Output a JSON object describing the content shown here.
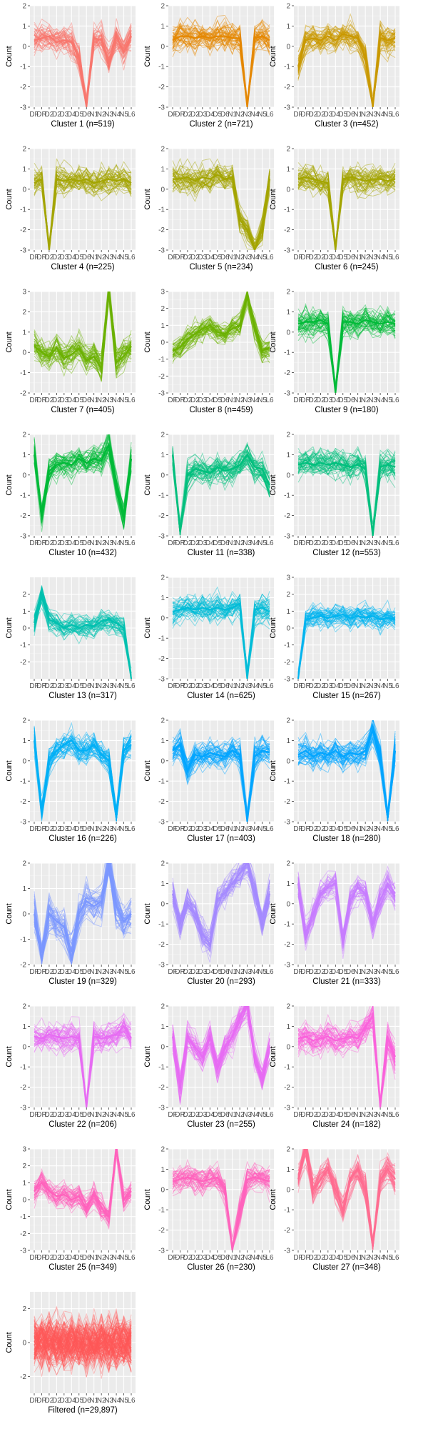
{
  "x_tick_labels": [
    "DF",
    "DR",
    "D2",
    "D2",
    "D3",
    "D4",
    "D5",
    "D6",
    "N1",
    "N2",
    "N3",
    "N4",
    "N5",
    "L6"
  ],
  "y_axis_label": "Count",
  "chart_data": [
    {
      "type": "line",
      "title": "Cluster 1 (n=519)",
      "ylim": [
        -3,
        2
      ],
      "yticks": [
        2,
        1,
        0,
        -1,
        -2,
        -3
      ],
      "color": "#F8766D",
      "profile": [
        0.3,
        0.4,
        0.5,
        0.2,
        0.3,
        0.2,
        -0.6,
        -3.0,
        0.4,
        0.3,
        -0.8,
        0.5,
        -0.3,
        0.5
      ],
      "grid": true
    },
    {
      "type": "line",
      "title": "Cluster 2 (n=721)",
      "ylim": [
        -3,
        2
      ],
      "yticks": [
        2,
        1,
        0,
        -1,
        -2,
        -3
      ],
      "color": "#E58700",
      "profile": [
        0.3,
        0.5,
        0.5,
        0.4,
        0.5,
        0.4,
        0.5,
        0.5,
        0.4,
        0.4,
        -3.0,
        0.4,
        0.5,
        0.3
      ],
      "grid": true
    },
    {
      "type": "line",
      "title": "Cluster 3 (n=452)",
      "ylim": [
        -3,
        2
      ],
      "yticks": [
        2,
        1,
        0,
        -1,
        -2,
        -3
      ],
      "color": "#C99800",
      "profile": [
        -1.0,
        0.3,
        0.4,
        0.3,
        0.5,
        0.3,
        0.6,
        0.5,
        0.4,
        -0.5,
        -3.0,
        0.4,
        0.3,
        0.4
      ],
      "grid": true
    },
    {
      "type": "line",
      "title": "Cluster 4 (n=225)",
      "ylim": [
        -3,
        2
      ],
      "yticks": [
        2,
        1,
        0,
        -1,
        -2,
        -3
      ],
      "color": "#A3A500",
      "profile": [
        0.3,
        0.5,
        -3.0,
        0.5,
        0.4,
        0.5,
        0.4,
        0.5,
        0.3,
        0.4,
        0.5,
        0.4,
        0.5,
        0.3
      ],
      "grid": true
    },
    {
      "type": "line",
      "title": "Cluster 5 (n=234)",
      "ylim": [
        -3,
        2
      ],
      "yticks": [
        2,
        1,
        0,
        -1,
        -2,
        -3
      ],
      "color": "#A3A500",
      "profile": [
        0.5,
        0.5,
        0.6,
        0.4,
        0.6,
        0.5,
        0.7,
        0.5,
        0.6,
        -1.5,
        -2.0,
        -3.0,
        -2.0,
        0.5
      ],
      "grid": true
    },
    {
      "type": "line",
      "title": "Cluster 6 (n=245)",
      "ylim": [
        -3,
        2
      ],
      "yticks": [
        2,
        1,
        0,
        -1,
        -2,
        -3
      ],
      "color": "#A3A500",
      "profile": [
        0.5,
        0.6,
        0.5,
        0.4,
        0.3,
        -3.0,
        0.5,
        0.6,
        0.5,
        0.4,
        0.5,
        0.5,
        0.4,
        0.5
      ],
      "grid": true
    },
    {
      "type": "line",
      "title": "Cluster 7 (n=405)",
      "ylim": [
        -2,
        3
      ],
      "yticks": [
        3,
        2,
        1,
        0,
        -1,
        -2
      ],
      "color": "#6BB100",
      "profile": [
        0.3,
        0.0,
        -0.2,
        0.2,
        -0.3,
        -0.1,
        0.2,
        -0.4,
        -0.2,
        -0.8,
        3.0,
        -0.5,
        -0.2,
        0.3
      ],
      "grid": true
    },
    {
      "type": "line",
      "title": "Cluster 8 (n=459)",
      "ylim": [
        -3,
        3
      ],
      "yticks": [
        3,
        2,
        1,
        0,
        -1,
        -2,
        -3
      ],
      "color": "#6BB100",
      "profile": [
        -0.5,
        -0.3,
        0.2,
        0.5,
        0.8,
        1.0,
        0.6,
        0.5,
        0.8,
        1.0,
        2.8,
        0.8,
        -0.5,
        -0.3
      ],
      "grid": true
    },
    {
      "type": "line",
      "title": "Cluster 9 (n=180)",
      "ylim": [
        -3,
        2
      ],
      "yticks": [
        2,
        1,
        0,
        -1,
        -2,
        -3
      ],
      "color": "#00BA38",
      "profile": [
        0.4,
        0.5,
        0.5,
        0.6,
        0.4,
        -3.0,
        0.5,
        0.5,
        0.4,
        0.6,
        0.5,
        0.4,
        0.5,
        0.4
      ],
      "grid": true
    },
    {
      "type": "line",
      "title": "Cluster 10 (n=432)",
      "ylim": [
        -3,
        2
      ],
      "yticks": [
        2,
        1,
        0,
        -1,
        -2,
        -3
      ],
      "color": "#00BA38",
      "profile": [
        1.0,
        -2.0,
        0.2,
        0.5,
        0.6,
        0.5,
        0.8,
        0.6,
        0.8,
        0.7,
        1.5,
        -0.5,
        -2.0,
        0.8
      ],
      "grid": true
    },
    {
      "type": "line",
      "title": "Cluster 11 (n=338)",
      "ylim": [
        -3,
        2
      ],
      "yticks": [
        2,
        1,
        0,
        -1,
        -2,
        -3
      ],
      "color": "#00BF7D",
      "profile": [
        1.0,
        -2.8,
        0.0,
        0.3,
        0.2,
        0.1,
        0.4,
        0.2,
        0.3,
        0.5,
        1.0,
        0.4,
        0.3,
        -0.5
      ],
      "grid": true
    },
    {
      "type": "line",
      "title": "Cluster 12 (n=553)",
      "ylim": [
        -3,
        2
      ],
      "yticks": [
        2,
        1,
        0,
        -1,
        -2,
        -3
      ],
      "color": "#00BF7D",
      "profile": [
        0.5,
        0.6,
        0.5,
        0.6,
        0.5,
        0.6,
        0.5,
        0.4,
        0.5,
        0.3,
        -3.0,
        0.4,
        0.5,
        0.4
      ],
      "grid": true
    },
    {
      "type": "line",
      "title": "Cluster 13 (n=317)",
      "ylim": [
        -3,
        3
      ],
      "yticks": [
        2,
        1,
        0,
        -1,
        -2
      ],
      "color": "#00C0AF",
      "profile": [
        0.3,
        2.0,
        0.5,
        0.3,
        0.0,
        0.2,
        0.0,
        0.2,
        0.1,
        0.4,
        0.5,
        0.3,
        0.0,
        -3.0
      ],
      "grid": true
    },
    {
      "type": "line",
      "title": "Cluster 14 (n=625)",
      "ylim": [
        -3,
        2
      ],
      "yticks": [
        2,
        1,
        0,
        -1,
        -2,
        -3
      ],
      "color": "#00BCD8",
      "profile": [
        0.3,
        0.4,
        0.5,
        0.4,
        0.5,
        0.4,
        0.5,
        0.4,
        0.5,
        0.7,
        -3.0,
        0.4,
        0.5,
        0.3
      ],
      "grid": true
    },
    {
      "type": "line",
      "title": "Cluster 15 (n=267)",
      "ylim": [
        -3,
        3
      ],
      "yticks": [
        3,
        2,
        1,
        0,
        -1,
        -2,
        -3
      ],
      "color": "#00B4EF",
      "profile": [
        -3.0,
        0.5,
        0.6,
        0.7,
        0.6,
        0.7,
        0.8,
        0.6,
        0.7,
        0.6,
        0.7,
        0.5,
        0.6,
        0.5
      ],
      "grid": true
    },
    {
      "type": "line",
      "title": "Cluster 16 (n=226)",
      "ylim": [
        -3,
        2
      ],
      "yticks": [
        2,
        1,
        0,
        -1,
        -2,
        -3
      ],
      "color": "#00B0F6",
      "profile": [
        1.0,
        -2.5,
        0.0,
        0.5,
        0.8,
        1.0,
        0.5,
        0.5,
        0.8,
        0.3,
        0.0,
        -2.8,
        0.5,
        0.8
      ],
      "grid": true
    },
    {
      "type": "line",
      "title": "Cluster 17 (n=403)",
      "ylim": [
        -3,
        2
      ],
      "yticks": [
        2,
        1,
        0,
        -1,
        -2,
        -3
      ],
      "color": "#00A5FF",
      "profile": [
        0.5,
        0.8,
        -0.5,
        0.3,
        0.2,
        0.4,
        0.3,
        0.2,
        0.5,
        0.3,
        -3.0,
        0.2,
        0.5,
        0.4
      ],
      "grid": true
    },
    {
      "type": "line",
      "title": "Cluster 18 (n=280)",
      "ylim": [
        -3,
        2
      ],
      "yticks": [
        2,
        1,
        0,
        -1,
        -2,
        -3
      ],
      "color": "#00A5FF",
      "profile": [
        0.3,
        0.5,
        0.2,
        0.4,
        0.3,
        0.5,
        0.2,
        0.4,
        0.3,
        0.5,
        1.5,
        0.2,
        -2.8,
        0.5
      ],
      "grid": true
    },
    {
      "type": "line",
      "title": "Cluster 19 (n=329)",
      "ylim": [
        -2,
        2
      ],
      "yticks": [
        2,
        1,
        0,
        -1,
        -2
      ],
      "color": "#7B97FF",
      "profile": [
        0.0,
        -1.5,
        0.0,
        -0.3,
        -0.5,
        -1.5,
        0.0,
        0.5,
        0.3,
        0.5,
        2.0,
        0.3,
        -0.3,
        0.0
      ],
      "grid": true
    },
    {
      "type": "line",
      "title": "Cluster 20 (n=293)",
      "ylim": [
        -3,
        2
      ],
      "yticks": [
        2,
        1,
        0,
        -1,
        -2,
        -3
      ],
      "color": "#A58AFF",
      "profile": [
        0.5,
        -1.0,
        0.0,
        -0.5,
        -1.5,
        -2.0,
        0.2,
        0.5,
        1.0,
        1.5,
        2.0,
        0.5,
        -1.0,
        0.5
      ],
      "grid": true
    },
    {
      "type": "line",
      "title": "Cluster 21 (n=333)",
      "ylim": [
        -3,
        2
      ],
      "yticks": [
        2,
        1,
        0,
        -1,
        -2,
        -3
      ],
      "color": "#C77CFF",
      "profile": [
        1.0,
        -1.5,
        -0.5,
        0.5,
        0.8,
        1.0,
        -1.8,
        0.2,
        0.8,
        0.5,
        -1.0,
        0.2,
        1.0,
        0.5
      ],
      "grid": true
    },
    {
      "type": "line",
      "title": "Cluster 22 (n=206)",
      "ylim": [
        -3,
        2
      ],
      "yticks": [
        2,
        1,
        0,
        -1,
        -2,
        -3
      ],
      "color": "#E76BF3",
      "profile": [
        0.5,
        0.4,
        0.6,
        0.5,
        0.4,
        0.5,
        0.4,
        -3.0,
        0.5,
        0.4,
        0.5,
        0.6,
        1.0,
        0.4
      ],
      "grid": true
    },
    {
      "type": "line",
      "title": "Cluster 23 (n=255)",
      "ylim": [
        -3,
        2
      ],
      "yticks": [
        2,
        1,
        0,
        -1,
        -2,
        -3
      ],
      "color": "#E76BF3",
      "profile": [
        0.5,
        -2.0,
        0.5,
        0.0,
        -0.5,
        0.5,
        -1.0,
        0.0,
        0.5,
        1.5,
        2.0,
        -0.5,
        -1.5,
        0.0
      ],
      "grid": true
    },
    {
      "type": "line",
      "title": "Cluster 24 (n=182)",
      "ylim": [
        -3,
        2
      ],
      "yticks": [
        2,
        1,
        0,
        -1,
        -2,
        -3
      ],
      "color": "#FA62DB",
      "profile": [
        0.4,
        0.5,
        0.3,
        0.4,
        0.5,
        0.3,
        0.4,
        0.5,
        0.4,
        1.0,
        1.5,
        -3.0,
        0.4,
        -0.5
      ],
      "grid": true
    },
    {
      "type": "line",
      "title": "Cluster 25 (n=349)",
      "ylim": [
        -3,
        3
      ],
      "yticks": [
        3,
        2,
        1,
        0,
        -1,
        -2,
        -3
      ],
      "color": "#FF62BC",
      "profile": [
        0.5,
        1.0,
        0.5,
        0.2,
        0.3,
        0.0,
        0.2,
        -0.5,
        0.3,
        -0.5,
        -1.0,
        3.0,
        0.0,
        0.5
      ],
      "grid": true
    },
    {
      "type": "line",
      "title": "Cluster 26 (n=230)",
      "ylim": [
        -3,
        2
      ],
      "yticks": [
        2,
        1,
        0,
        -1,
        -2,
        -3
      ],
      "color": "#FF62BC",
      "profile": [
        0.4,
        0.5,
        0.6,
        0.5,
        0.4,
        0.5,
        0.6,
        0.0,
        -3.0,
        -1.0,
        0.5,
        0.6,
        0.5,
        0.4
      ],
      "grid": true
    },
    {
      "type": "line",
      "title": "Cluster 27 (n=348)",
      "ylim": [
        -3,
        2
      ],
      "yticks": [
        2,
        1,
        0,
        -1,
        -2,
        -3
      ],
      "color": "#FF6C91",
      "profile": [
        0.5,
        2.0,
        0.0,
        0.5,
        1.0,
        0.0,
        -1.0,
        0.5,
        1.0,
        0.0,
        -2.8,
        0.5,
        1.0,
        0.5
      ],
      "grid": true
    },
    {
      "type": "line",
      "title": "Filtered (n=29,897)",
      "ylim": [
        -3,
        3
      ],
      "yticks": [
        2,
        0,
        -2
      ],
      "color": "#FF5A5A",
      "profile": [
        0.0,
        0.0,
        0.0,
        0.0,
        0.0,
        0.0,
        0.0,
        0.0,
        0.0,
        0.0,
        0.0,
        0.0,
        0.0,
        0.0
      ],
      "grid": true
    }
  ]
}
